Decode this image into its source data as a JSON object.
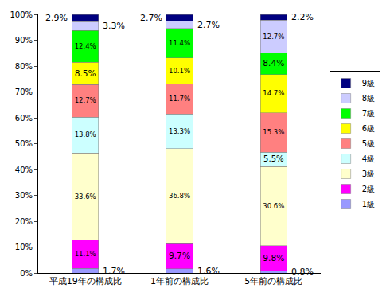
{
  "chart_data": {
    "type": "bar",
    "stacked": true,
    "categories": [
      "平成19年の構成比",
      "1年前の構成比",
      "5年前の構成比"
    ],
    "series": [
      {
        "name": "1級",
        "color": "#9999ff",
        "values": [
          1.7,
          1.6,
          0.8
        ],
        "value_labels": [
          "1.7%",
          "1.6%",
          "0.8%"
        ]
      },
      {
        "name": "2級",
        "color": "#ff00ff",
        "values": [
          11.1,
          9.7,
          9.8
        ],
        "value_labels": [
          "11.1%",
          "9.7%",
          "9.8%"
        ]
      },
      {
        "name": "3級",
        "color": "#ffffcc",
        "values": [
          33.6,
          36.8,
          30.6
        ],
        "value_labels": [
          "33.6%",
          "36.8%",
          "30.6%"
        ]
      },
      {
        "name": "4級",
        "color": "#ccffff",
        "values": [
          13.8,
          13.3,
          5.5
        ],
        "value_labels": [
          "13.8%",
          "13.3%",
          "5.5%"
        ]
      },
      {
        "name": "5級",
        "color": "#ff8080",
        "values": [
          12.7,
          11.7,
          15.3
        ],
        "value_labels": [
          "12.7%",
          "11.7%",
          "15.3%"
        ]
      },
      {
        "name": "6級",
        "color": "#ffff00",
        "values": [
          8.5,
          10.1,
          14.7
        ],
        "value_labels": [
          "8.5%",
          "10.1%",
          "14.7%"
        ]
      },
      {
        "name": "7級",
        "color": "#00ff00",
        "values": [
          12.4,
          11.4,
          8.4
        ],
        "value_labels": [
          "12.4%",
          "11.4%",
          "8.4%"
        ]
      },
      {
        "name": "8級",
        "color": "#ccccff",
        "values": [
          3.3,
          2.7,
          12.7
        ],
        "value_labels": [
          "3.3%",
          "2.7%",
          "12.7%"
        ]
      },
      {
        "name": "9級",
        "color": "#000080",
        "values": [
          2.9,
          2.7,
          2.2
        ],
        "value_labels": [
          "2.9%",
          "2.7%",
          "2.2%"
        ]
      }
    ],
    "ylim": [
      0,
      100
    ],
    "yticks": [
      {
        "value": 0,
        "label": "0%"
      },
      {
        "value": 10,
        "label": "10%"
      },
      {
        "value": 20,
        "label": "20%"
      },
      {
        "value": 30,
        "label": "30%"
      },
      {
        "value": 40,
        "label": "40%"
      },
      {
        "value": 50,
        "label": "50%"
      },
      {
        "value": 60,
        "label": "60%"
      },
      {
        "value": 70,
        "label": "70%"
      },
      {
        "value": 80,
        "label": "80%"
      },
      {
        "value": 90,
        "label": "90%"
      },
      {
        "value": 100,
        "label": "100%"
      }
    ],
    "grid": false,
    "legend": "right",
    "data_labels": true
  }
}
